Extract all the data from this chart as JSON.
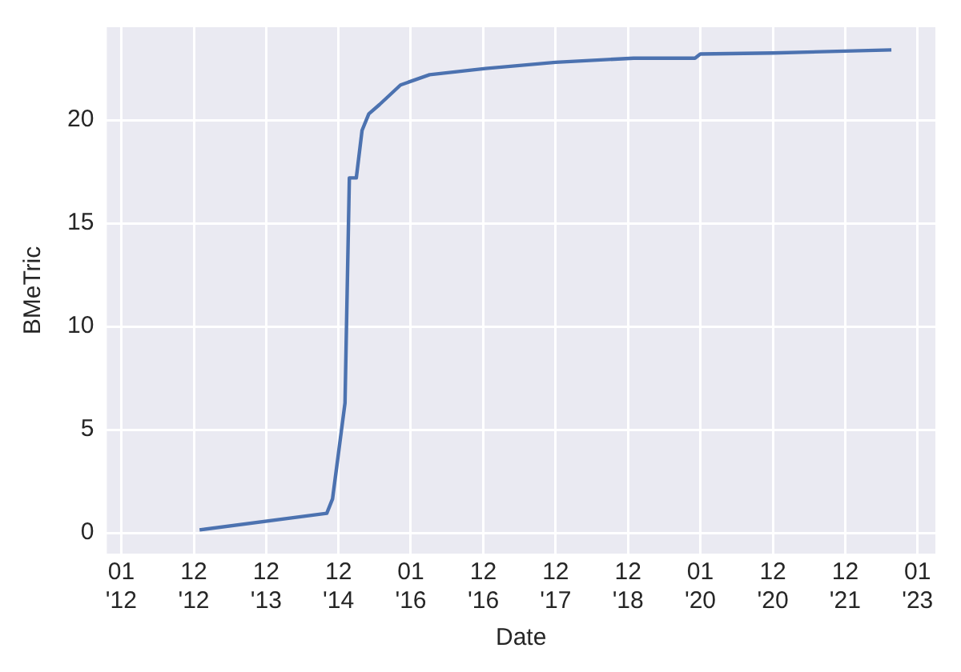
{
  "chart_data": {
    "type": "line",
    "xlabel": "Date",
    "ylabel": "BMeTric",
    "x": [
      "2013-01-30",
      "2014-11-03",
      "2014-12-02",
      "2015-02-03",
      "2015-02-25",
      "2015-04-01",
      "2015-04-30",
      "2015-06-03",
      "2015-07-27",
      "2015-11-10",
      "2016-04-05",
      "2017-01-12",
      "2018-01-01",
      "2019-01-30",
      "2019-12-05",
      "2020-01-01",
      "2021-01-01",
      "2022-08-22"
    ],
    "series": [
      {
        "color": "#4c72b0",
        "values": [
          0.15,
          0.95,
          1.65,
          6.3,
          17.2,
          17.2,
          19.5,
          20.3,
          20.75,
          21.7,
          22.2,
          22.5,
          22.8,
          23.0,
          23.0,
          23.2,
          23.25,
          23.4
        ]
      }
    ],
    "xlim": [
      "2011-10-20",
      "2023-04-01"
    ],
    "xticks": [
      {
        "value": "2012-01-01",
        "label": "01\n'12"
      },
      {
        "value": "2013-01-01",
        "label": "12\n'12"
      },
      {
        "value": "2014-01-01",
        "label": "12\n'13"
      },
      {
        "value": "2015-01-01",
        "label": "12\n'14"
      },
      {
        "value": "2016-01-01",
        "label": "01\n'16"
      },
      {
        "value": "2017-01-01",
        "label": "12\n'16"
      },
      {
        "value": "2018-01-01",
        "label": "12\n'17"
      },
      {
        "value": "2019-01-01",
        "label": "12\n'18"
      },
      {
        "value": "2020-01-01",
        "label": "01\n'20"
      },
      {
        "value": "2021-01-01",
        "label": "12\n'20"
      },
      {
        "value": "2022-01-01",
        "label": "12\n'21"
      },
      {
        "value": "2023-01-01",
        "label": "01\n'23"
      }
    ],
    "ylim": [
      -1,
      24.5
    ],
    "yticks": [
      0,
      5,
      10,
      15,
      20
    ],
    "grid": true,
    "legend": false,
    "marker": "none",
    "line_style": "solid"
  }
}
